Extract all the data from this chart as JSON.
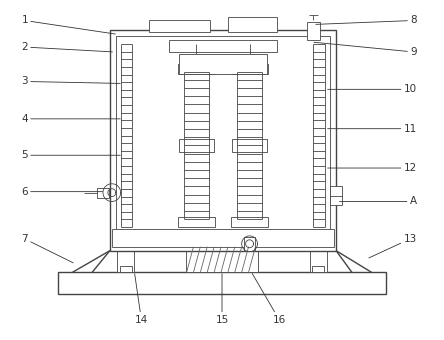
{
  "bg_color": "#ffffff",
  "line_color": "#444444",
  "label_color": "#333333",
  "fig_width": 4.44,
  "fig_height": 3.4,
  "dpi": 100
}
